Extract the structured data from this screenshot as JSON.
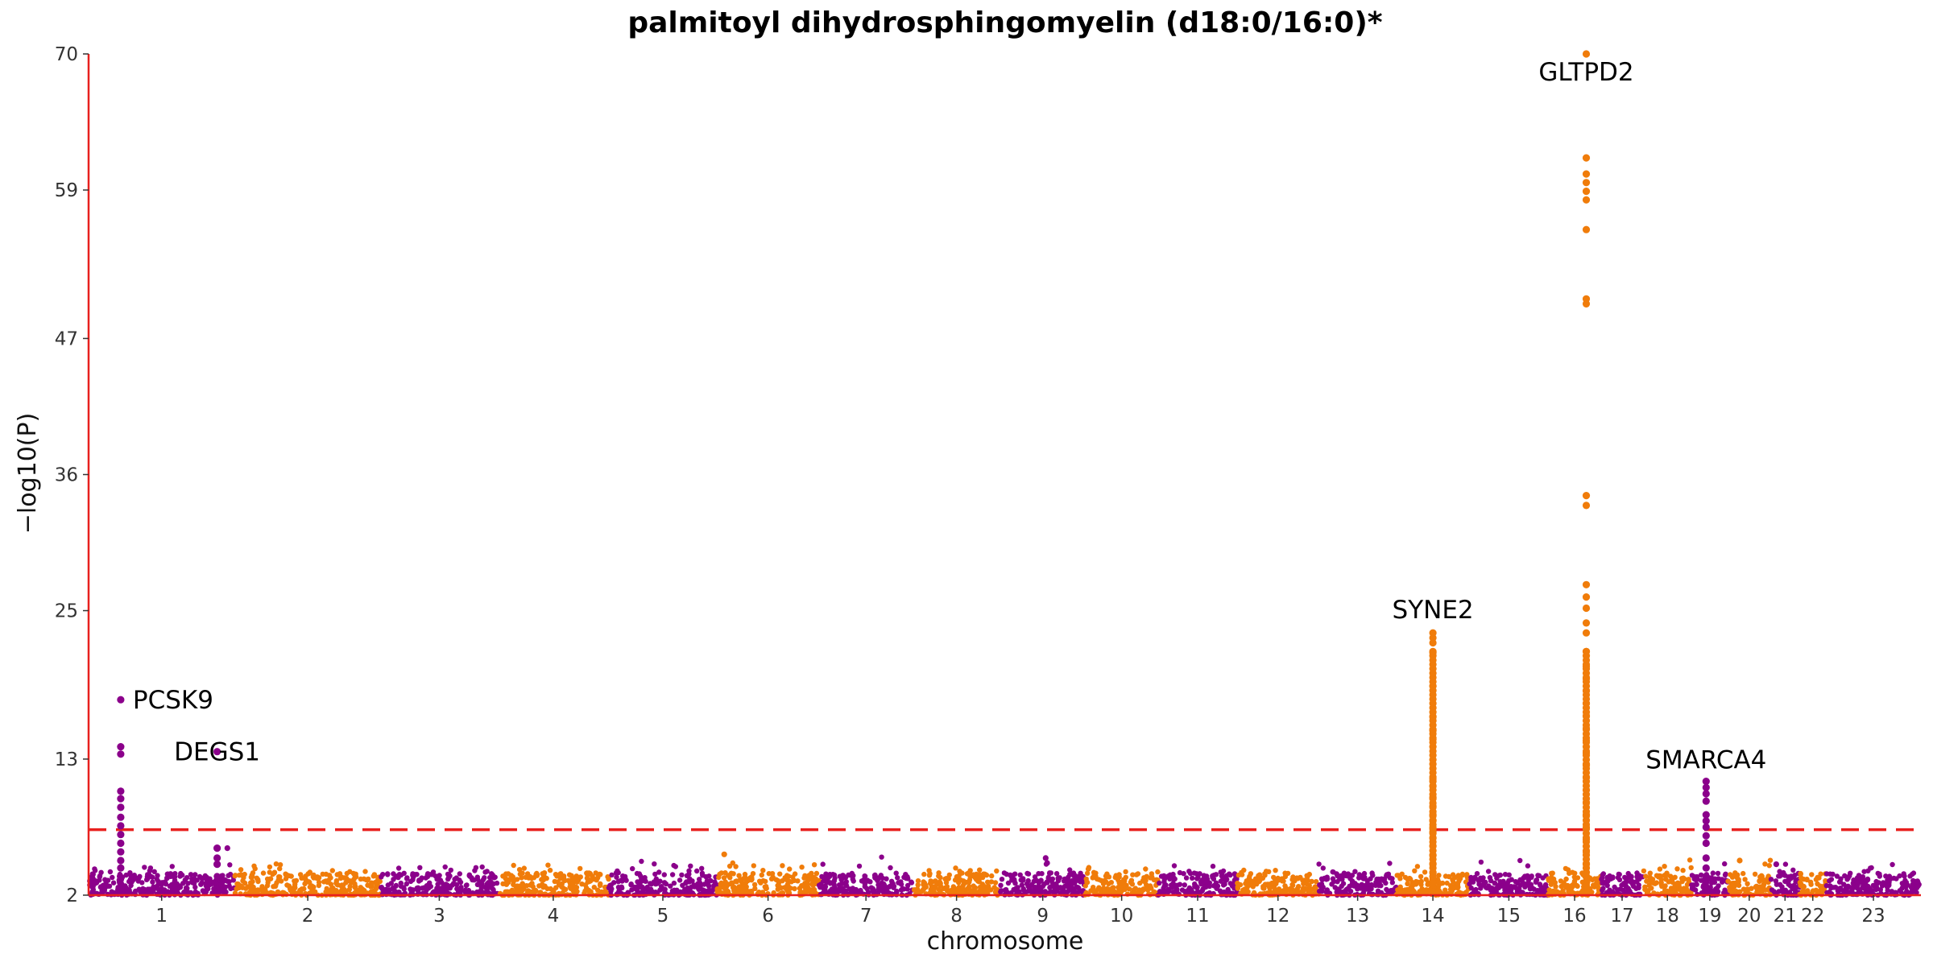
{
  "chart_data": {
    "type": "scatter",
    "title": "palmitoyl dihydrosphingomyelin (d18:0/16:0)*",
    "xlabel": "chromosome",
    "ylabel": "−log10(P)",
    "ylim": [
      2,
      70
    ],
    "yticks": [
      2,
      13,
      25,
      36,
      47,
      59,
      70
    ],
    "significance_threshold": 7.3,
    "colors": {
      "purple": "#8b008b",
      "orange": "#f07c0a",
      "threshold": "#e8201e",
      "axis": "#e8201e"
    },
    "chromosomes": [
      {
        "label": "1",
        "start": 0.0,
        "end": 1.0,
        "color": "purple"
      },
      {
        "label": "2",
        "start": 1.0,
        "end": 2.0,
        "color": "orange"
      },
      {
        "label": "3",
        "start": 2.0,
        "end": 2.8,
        "color": "purple"
      },
      {
        "label": "4",
        "start": 2.8,
        "end": 3.56,
        "color": "orange"
      },
      {
        "label": "5",
        "start": 3.56,
        "end": 4.3,
        "color": "purple"
      },
      {
        "label": "6",
        "start": 4.3,
        "end": 5.0,
        "color": "orange"
      },
      {
        "label": "7",
        "start": 5.0,
        "end": 5.64,
        "color": "purple"
      },
      {
        "label": "8",
        "start": 5.64,
        "end": 6.24,
        "color": "orange"
      },
      {
        "label": "9",
        "start": 6.24,
        "end": 6.82,
        "color": "purple"
      },
      {
        "label": "10",
        "start": 6.82,
        "end": 7.32,
        "color": "orange"
      },
      {
        "label": "11",
        "start": 7.32,
        "end": 7.86,
        "color": "purple"
      },
      {
        "label": "12",
        "start": 7.86,
        "end": 8.42,
        "color": "orange"
      },
      {
        "label": "13",
        "start": 8.42,
        "end": 8.95,
        "color": "purple"
      },
      {
        "label": "14",
        "start": 8.95,
        "end": 9.45,
        "color": "orange"
      },
      {
        "label": "15",
        "start": 9.45,
        "end": 9.99,
        "color": "purple"
      },
      {
        "label": "16",
        "start": 9.99,
        "end": 10.35,
        "color": "orange"
      },
      {
        "label": "17",
        "start": 10.35,
        "end": 10.64,
        "color": "purple"
      },
      {
        "label": "18",
        "start": 10.64,
        "end": 10.97,
        "color": "orange"
      },
      {
        "label": "19",
        "start": 10.97,
        "end": 11.22,
        "color": "purple"
      },
      {
        "label": "20",
        "start": 11.22,
        "end": 11.51,
        "color": "orange"
      },
      {
        "label": "21",
        "start": 11.51,
        "end": 11.71,
        "color": "purple"
      },
      {
        "label": "22",
        "start": 11.71,
        "end": 11.89,
        "color": "orange"
      },
      {
        "label": "23",
        "start": 11.89,
        "end": 12.54,
        "color": "purple"
      }
    ],
    "peaks": [
      {
        "chrom": "1",
        "pos": 0.22,
        "top": 17.8,
        "label": "PCSK9",
        "values": [
          4.2,
          4.8,
          5.5,
          6.2,
          6.9,
          7.6,
          8.3,
          9.1,
          9.8,
          10.4,
          13.4,
          14.0,
          17.8
        ]
      },
      {
        "chrom": "1",
        "pos": 0.88,
        "top": 13.6,
        "label": "DEGS1",
        "values": [
          4.5,
          5.0,
          5.8,
          13.6
        ]
      },
      {
        "chrom": "14",
        "pos": 9.2,
        "top": 23.2,
        "label": "SYNE2",
        "values": [
          3.8,
          4.5,
          5.2,
          6.0,
          6.6,
          7.1,
          7.5,
          8.0,
          8.5,
          9.2,
          9.9,
          10.8,
          11.4,
          14.6,
          15.3,
          16.4,
          18.9,
          21.6,
          22.4,
          22.8,
          23.2
        ]
      },
      {
        "chrom": "16",
        "pos": 10.25,
        "top": 70.0,
        "label": "GLTPD2",
        "values": [
          3.5,
          4.5,
          5.5,
          6.5,
          7.5,
          8.5,
          9.5,
          10.5,
          11.5,
          12.5,
          13.5,
          14.5,
          15.5,
          16.5,
          17.5,
          18.5,
          19.5,
          20.5,
          21.7,
          23.2,
          24.0,
          25.2,
          26.1,
          27.1,
          33.5,
          34.3,
          49.8,
          50.2,
          55.8,
          58.2,
          58.9,
          59.6,
          60.3,
          61.6,
          70.0
        ]
      },
      {
        "chrom": "19",
        "pos": 11.07,
        "top": 11.2,
        "label": "SMARCA4",
        "values": [
          3.5,
          4.2,
          5.0,
          6.2,
          6.8,
          7.5,
          8.0,
          8.5,
          9.6,
          10.2,
          10.7,
          11.2
        ]
      }
    ],
    "secondary_points": [
      {
        "pos": 0.95,
        "value": 5.8
      },
      {
        "pos": 4.35,
        "value": 5.3
      },
      {
        "pos": 6.55,
        "value": 5.0
      },
      {
        "pos": 6.56,
        "value": 4.6
      },
      {
        "pos": 11.3,
        "value": 4.8
      },
      {
        "pos": 11.55,
        "value": 4.5
      }
    ]
  }
}
